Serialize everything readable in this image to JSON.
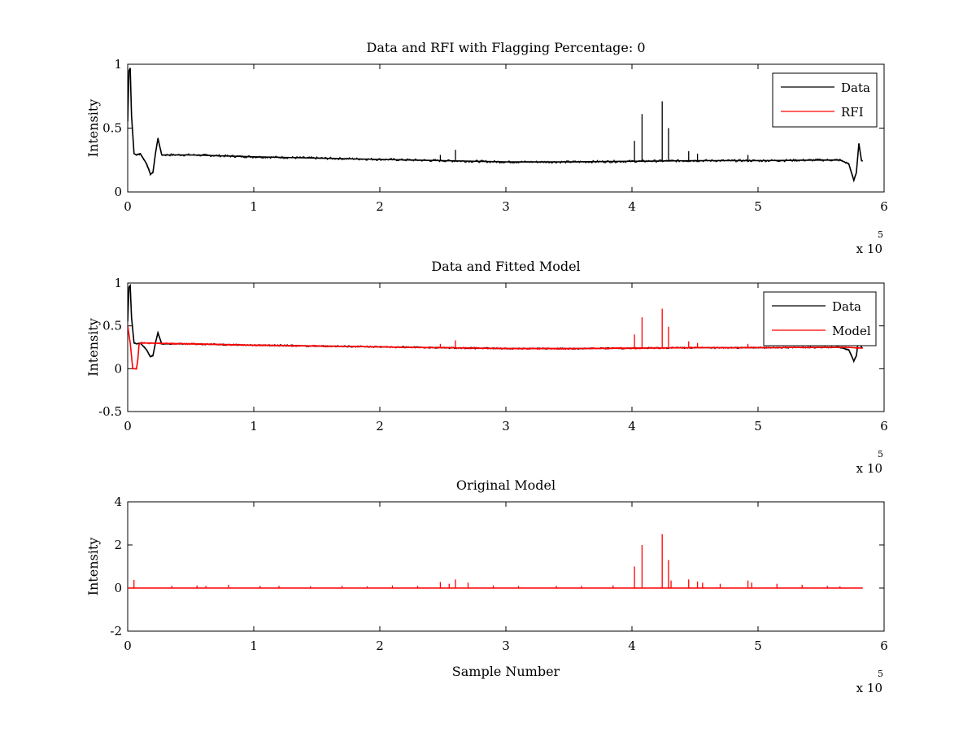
{
  "colors": {
    "data": "#000000",
    "rfi": "#ff0000",
    "background": "#ffffff",
    "axes": "#000000"
  },
  "chart_data": [
    {
      "type": "line",
      "title": "Data and RFI with Flagging Percentage: 0",
      "xlabel": "",
      "ylabel": "Intensity",
      "xlim": [
        0,
        6
      ],
      "ylim": [
        0,
        1
      ],
      "xticks": [
        "0",
        "1",
        "2",
        "3",
        "4",
        "5",
        "6"
      ],
      "yticks": [
        "0",
        "0.5",
        "1"
      ],
      "x_exponent": {
        "base": "x 10",
        "power": "5"
      },
      "legend": {
        "position": "top-right",
        "entries": [
          "Data",
          "RFI"
        ]
      },
      "series": [
        {
          "name": "Data",
          "color": "#000000",
          "x": [
            0.0,
            0.01,
            0.02,
            0.03,
            0.05,
            0.07,
            0.1,
            0.15,
            0.18,
            0.2,
            0.22,
            0.24,
            0.27,
            0.5,
            1.0,
            1.5,
            2.0,
            2.5,
            3.0,
            3.5,
            4.0,
            4.5,
            5.0,
            5.5,
            5.65,
            5.72,
            5.76,
            5.78,
            5.8,
            5.82,
            5.83
          ],
          "y": [
            0.55,
            0.95,
            0.97,
            0.6,
            0.3,
            0.29,
            0.3,
            0.22,
            0.14,
            0.15,
            0.3,
            0.42,
            0.29,
            0.29,
            0.275,
            0.265,
            0.255,
            0.245,
            0.235,
            0.235,
            0.24,
            0.245,
            0.245,
            0.25,
            0.25,
            0.22,
            0.09,
            0.15,
            0.38,
            0.25,
            0.24
          ],
          "spikes": [
            [
              2.48,
              0.29
            ],
            [
              2.6,
              0.33
            ],
            [
              4.02,
              0.4
            ],
            [
              4.08,
              0.61
            ],
            [
              4.24,
              0.71
            ],
            [
              4.29,
              0.5
            ],
            [
              4.45,
              0.32
            ],
            [
              4.52,
              0.3
            ],
            [
              4.92,
              0.29
            ]
          ]
        },
        {
          "name": "RFI",
          "color": "#ff0000",
          "x": [],
          "y": []
        }
      ]
    },
    {
      "type": "line",
      "title": "Data and Fitted Model",
      "xlabel": "",
      "ylabel": "Intensity",
      "xlim": [
        0,
        6
      ],
      "ylim": [
        -0.5,
        1
      ],
      "xticks": [
        "0",
        "1",
        "2",
        "3",
        "4",
        "5",
        "6"
      ],
      "yticks": [
        "-0.5",
        "0",
        "0.5",
        "1"
      ],
      "x_exponent": {
        "base": "x 10",
        "power": "5"
      },
      "legend": {
        "position": "top-right",
        "entries": [
          "Data",
          "Model"
        ]
      },
      "series": [
        {
          "name": "Data",
          "color": "#000000",
          "x": [
            0.0,
            0.01,
            0.02,
            0.03,
            0.05,
            0.07,
            0.1,
            0.15,
            0.18,
            0.2,
            0.22,
            0.24,
            0.27,
            0.5,
            1.0,
            1.5,
            2.0,
            2.5,
            3.0,
            3.5,
            4.0,
            4.5,
            5.0,
            5.5,
            5.65,
            5.72,
            5.76,
            5.78,
            5.8,
            5.82,
            5.83
          ],
          "y": [
            0.55,
            0.95,
            0.97,
            0.6,
            0.3,
            0.29,
            0.3,
            0.22,
            0.14,
            0.15,
            0.3,
            0.42,
            0.29,
            0.29,
            0.275,
            0.265,
            0.255,
            0.245,
            0.235,
            0.235,
            0.24,
            0.245,
            0.245,
            0.25,
            0.25,
            0.22,
            0.09,
            0.15,
            0.38,
            0.25,
            0.24
          ],
          "spikes": []
        },
        {
          "name": "Model",
          "color": "#ff0000",
          "x": [
            0.0,
            0.02,
            0.04,
            0.05,
            0.07,
            0.08,
            0.09,
            0.1,
            0.5,
            1.0,
            1.5,
            2.0,
            2.5,
            3.0,
            3.5,
            4.0,
            4.5,
            5.0,
            5.5,
            5.7,
            5.83
          ],
          "y": [
            0.5,
            0.3,
            0.0,
            0.0,
            0.0,
            0.1,
            0.28,
            0.3,
            0.29,
            0.275,
            0.265,
            0.255,
            0.245,
            0.235,
            0.235,
            0.24,
            0.245,
            0.245,
            0.25,
            0.25,
            0.24
          ],
          "spikes": [
            [
              2.48,
              0.29
            ],
            [
              2.6,
              0.33
            ],
            [
              4.02,
              0.4
            ],
            [
              4.08,
              0.6
            ],
            [
              4.24,
              0.7
            ],
            [
              4.29,
              0.49
            ],
            [
              4.45,
              0.32
            ],
            [
              4.52,
              0.3
            ],
            [
              4.92,
              0.29
            ]
          ]
        }
      ]
    },
    {
      "type": "line",
      "title": "Original Model",
      "xlabel": "Sample Number",
      "ylabel": "Intensity",
      "xlim": [
        0,
        6
      ],
      "ylim": [
        -2,
        4
      ],
      "xticks": [
        "0",
        "1",
        "2",
        "3",
        "4",
        "5",
        "6"
      ],
      "yticks": [
        "-2",
        "0",
        "2",
        "4"
      ],
      "x_exponent": {
        "base": "x 10",
        "power": "5"
      },
      "legend": null,
      "series": [
        {
          "color": "#ff0000",
          "x": [
            0.0,
            5.83
          ],
          "y": [
            0.0,
            0.0
          ],
          "spikes": [
            [
              0.05,
              0.38
            ],
            [
              0.35,
              0.1
            ],
            [
              0.55,
              0.12
            ],
            [
              0.62,
              0.1
            ],
            [
              0.8,
              0.15
            ],
            [
              1.05,
              0.1
            ],
            [
              1.2,
              0.1
            ],
            [
              1.45,
              0.08
            ],
            [
              1.7,
              0.1
            ],
            [
              1.9,
              0.08
            ],
            [
              2.1,
              0.12
            ],
            [
              2.3,
              0.1
            ],
            [
              2.48,
              0.28
            ],
            [
              2.55,
              0.2
            ],
            [
              2.6,
              0.4
            ],
            [
              2.7,
              0.25
            ],
            [
              2.9,
              0.12
            ],
            [
              3.1,
              0.1
            ],
            [
              3.4,
              0.1
            ],
            [
              3.6,
              0.1
            ],
            [
              3.85,
              0.12
            ],
            [
              4.02,
              1.0
            ],
            [
              4.08,
              2.0
            ],
            [
              4.24,
              2.5
            ],
            [
              4.29,
              1.3
            ],
            [
              4.31,
              0.35
            ],
            [
              4.45,
              0.4
            ],
            [
              4.52,
              0.3
            ],
            [
              4.56,
              0.25
            ],
            [
              4.7,
              0.2
            ],
            [
              4.92,
              0.35
            ],
            [
              4.95,
              0.25
            ],
            [
              5.15,
              0.2
            ],
            [
              5.35,
              0.15
            ],
            [
              5.55,
              0.1
            ],
            [
              5.65,
              0.08
            ]
          ]
        }
      ]
    }
  ]
}
